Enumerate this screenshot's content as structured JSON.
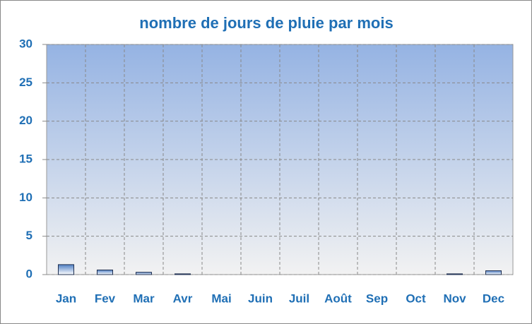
{
  "chart_data": {
    "type": "bar",
    "title": "nombre de jours de pluie par mois",
    "categories": [
      "Jan",
      "Fev",
      "Mar",
      "Avr",
      "Mai",
      "Juin",
      "Juil",
      "Août",
      "Sep",
      "Oct",
      "Nov",
      "Dec"
    ],
    "values": [
      1.3,
      0.6,
      0.3,
      0.1,
      0,
      0,
      0,
      0,
      0,
      0,
      0.1,
      0.5
    ],
    "color": "#4f7fc4",
    "ylim": [
      0,
      30
    ],
    "yticks": [
      0,
      5,
      10,
      15,
      20,
      25,
      30
    ],
    "grid": true
  }
}
